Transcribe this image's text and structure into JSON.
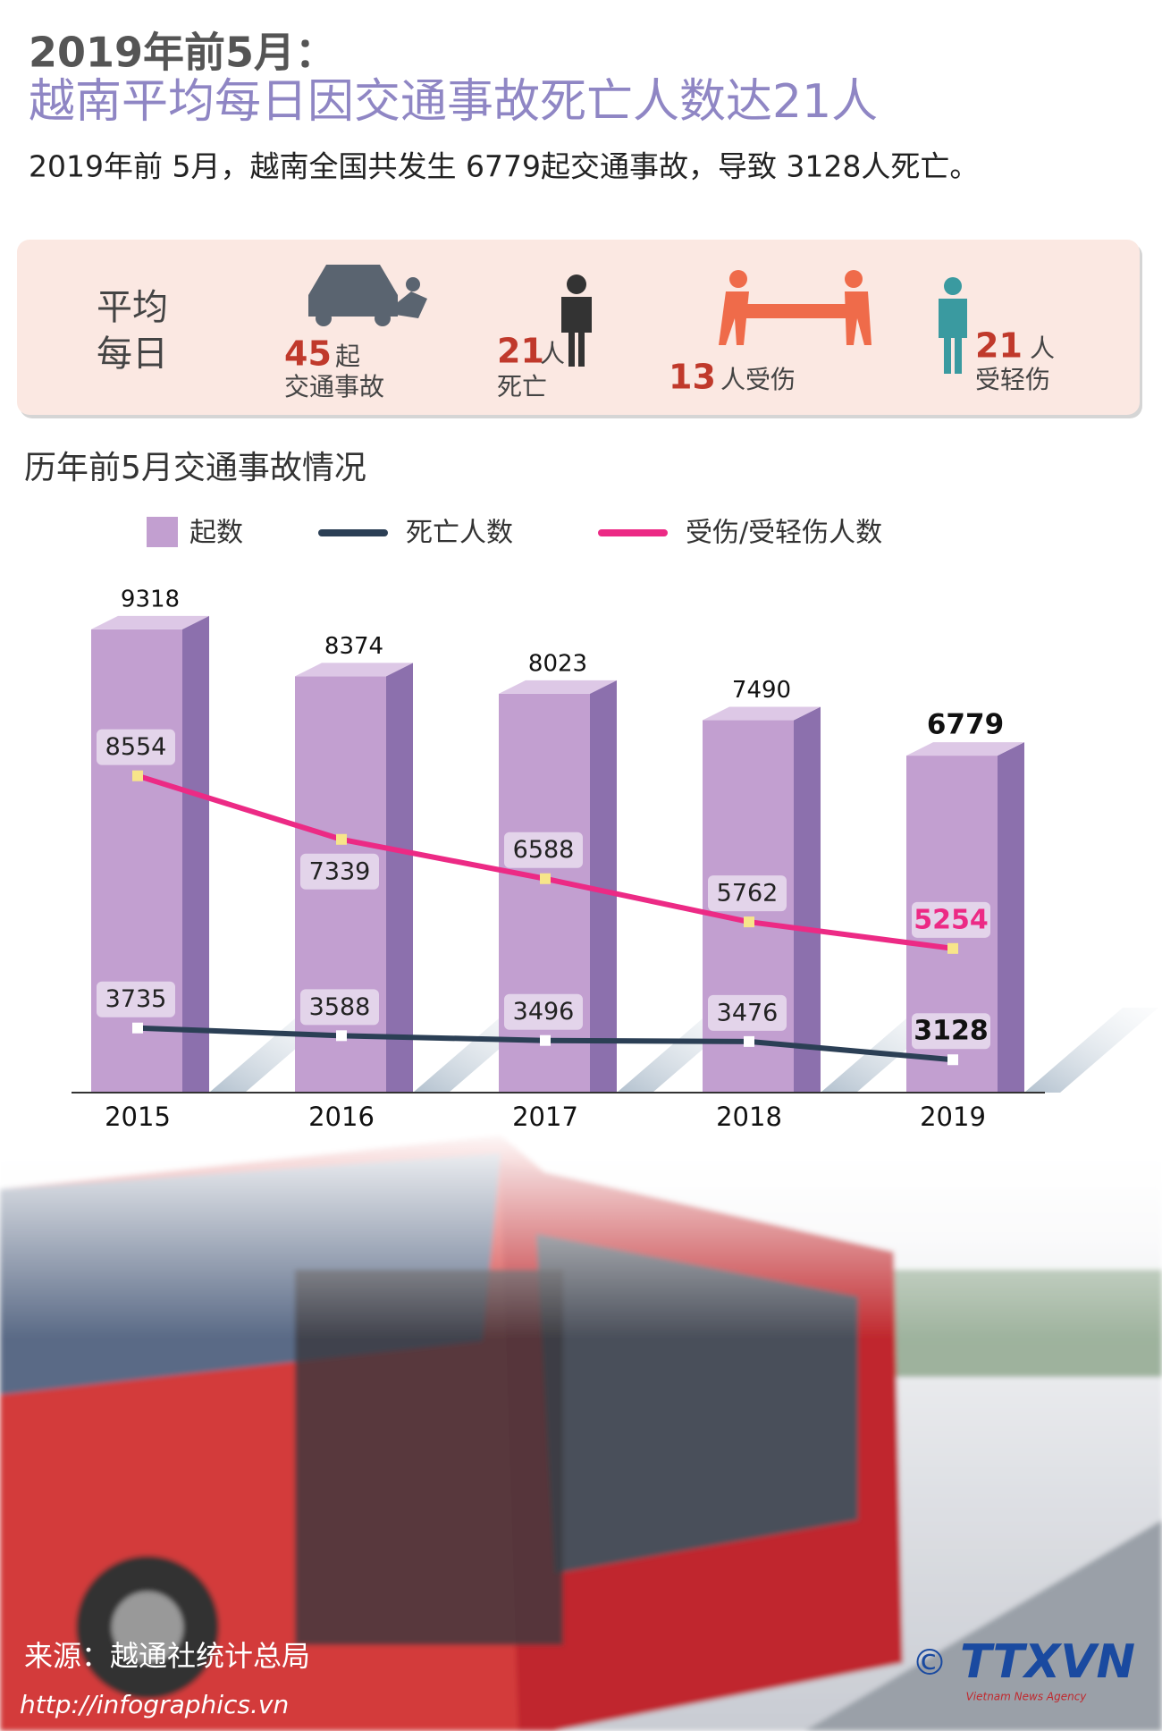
{
  "header": {
    "title_line1": "2019年前5月：",
    "title_line2": "越南平均每日因交通事故死亡人数达21人",
    "subtitle": "2019年前 5月，越南全国共发生 6779起交通事故，导致 3128人死亡。"
  },
  "daily": {
    "label": [
      "平均",
      "每日"
    ],
    "items": [
      {
        "number": 45,
        "unit": "起",
        "caption": "交通事故"
      },
      {
        "number": 21,
        "unit": "人",
        "caption": "死亡"
      },
      {
        "number": 13,
        "unit": "人受伤"
      },
      {
        "number": 21,
        "unit": "人",
        "caption": "受轻伤"
      }
    ]
  },
  "chart_data": {
    "type": "bar",
    "title": "历年前5月交通事故情况",
    "categories": [
      "2015",
      "2016",
      "2017",
      "2018",
      "2019"
    ],
    "ylim": [
      0,
      10000
    ],
    "y2lim": [
      2500,
      12000
    ],
    "series": [
      {
        "name": "起数",
        "type": "bar",
        "color": "#c29fd0",
        "values": [
          9318,
          8374,
          8023,
          7490,
          6779
        ]
      },
      {
        "name": "死亡人数",
        "type": "line",
        "axis": "y2",
        "color": "#2b3f55",
        "values": [
          3735,
          3588,
          3496,
          3476,
          3128
        ]
      },
      {
        "name": "受伤/受轻伤人数",
        "type": "line",
        "axis": "y2",
        "color": "#ec2a85",
        "values": [
          8554,
          7339,
          6588,
          5762,
          5254
        ]
      }
    ]
  },
  "footer": {
    "source": "来源：越通社统计总局",
    "url": "http://infographics.vn",
    "copyright": "©",
    "logo": "TTXVN",
    "agency": "Vietnam News Agency"
  }
}
